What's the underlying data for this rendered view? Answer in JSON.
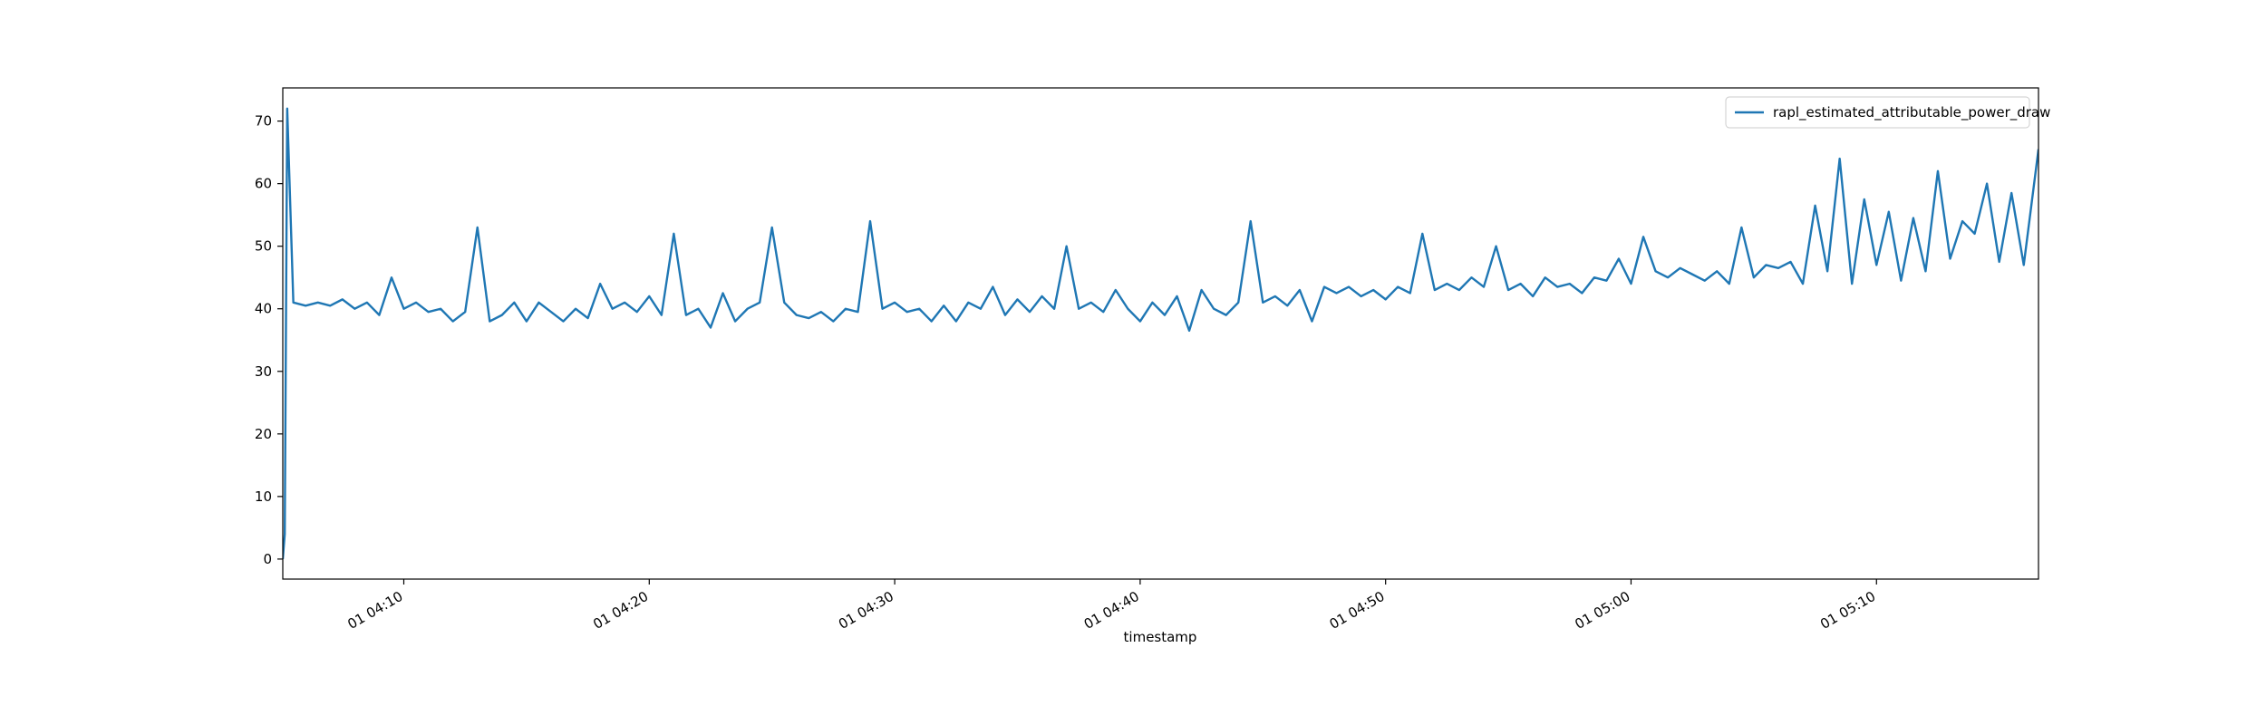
{
  "chart_data": {
    "type": "line",
    "xlabel": "timestamp",
    "legend": "upper right",
    "grid": false,
    "xlim": [
      5.07,
      76.6
    ],
    "ylim": [
      -3.2,
      75.3
    ],
    "xticks": [
      {
        "value": 10,
        "label": "01 04:10"
      },
      {
        "value": 20,
        "label": "01 04:20"
      },
      {
        "value": 30,
        "label": "01 04:30"
      },
      {
        "value": 40,
        "label": "01 04:40"
      },
      {
        "value": 50,
        "label": "01 04:50"
      },
      {
        "value": 60,
        "label": "01 05:00"
      },
      {
        "value": 70,
        "label": "01 05:10"
      }
    ],
    "yticks": [
      0,
      10,
      20,
      30,
      40,
      50,
      60,
      70
    ],
    "x": [
      5.07,
      5.15,
      5.25,
      5.5,
      6,
      6.5,
      7,
      7.5,
      8,
      8.5,
      9,
      9.5,
      10,
      10.5,
      11,
      11.5,
      12,
      12.5,
      13,
      13.5,
      14,
      14.5,
      15,
      15.5,
      16,
      16.5,
      17,
      17.5,
      18,
      18.5,
      19,
      19.5,
      20,
      20.5,
      21,
      21.5,
      22,
      22.5,
      23,
      23.5,
      24,
      24.5,
      25,
      25.5,
      26,
      26.5,
      27,
      27.5,
      28,
      28.5,
      29,
      29.5,
      30,
      30.5,
      31,
      31.5,
      32,
      32.5,
      33,
      33.5,
      34,
      34.5,
      35,
      35.5,
      36,
      36.5,
      37,
      37.5,
      38,
      38.5,
      39,
      39.5,
      40,
      40.5,
      41,
      41.5,
      42,
      42.5,
      43,
      43.5,
      44,
      44.5,
      45,
      45.5,
      46,
      46.5,
      47,
      47.5,
      48,
      48.5,
      49,
      49.5,
      50,
      50.5,
      51,
      51.5,
      52,
      52.5,
      53,
      53.5,
      54,
      54.5,
      55,
      55.5,
      56,
      56.5,
      57,
      57.5,
      58,
      58.5,
      59,
      59.5,
      60,
      60.5,
      61,
      61.5,
      62,
      62.5,
      63,
      63.5,
      64,
      64.5,
      65,
      65.5,
      66,
      66.5,
      67,
      67.5,
      68,
      68.5,
      69,
      69.5,
      70,
      70.5,
      71,
      71.5,
      72,
      72.5,
      73,
      73.5,
      74,
      74.5,
      75,
      75.5,
      76,
      76.6
    ],
    "series": [
      {
        "name": "rapl_estimated_attributable_power_draw",
        "color": "#1f77b4",
        "values": [
          0,
          4,
          72,
          41,
          40.5,
          41,
          40.5,
          41.5,
          40,
          41,
          39,
          45,
          40,
          41,
          39.5,
          40,
          38,
          39.5,
          53,
          38,
          39,
          41,
          38,
          41,
          39.5,
          38,
          40,
          38.5,
          44,
          40,
          41,
          39.5,
          42,
          39,
          52,
          39,
          40,
          37,
          42.5,
          38,
          40,
          41,
          53,
          41,
          39,
          38.5,
          39.5,
          38,
          40,
          39.5,
          54,
          40,
          41,
          39.5,
          40,
          38,
          40.5,
          38,
          41,
          40,
          43.5,
          39,
          41.5,
          39.5,
          42,
          40,
          50,
          40,
          41,
          39.5,
          43,
          40,
          38,
          41,
          39,
          42,
          36.5,
          43,
          40,
          39,
          41,
          54,
          41,
          42,
          40.5,
          43,
          38,
          43.5,
          42.5,
          43.5,
          42,
          43,
          41.5,
          43.5,
          42.5,
          52,
          43,
          44,
          43,
          45,
          43.5,
          50,
          43,
          44,
          42,
          45,
          43.5,
          44,
          42.5,
          45,
          44.5,
          48,
          44,
          51.5,
          46,
          45,
          46.5,
          45.5,
          44.5,
          46,
          44,
          53,
          45,
          47,
          46.5,
          47.5,
          44,
          56.5,
          46,
          64,
          44,
          57.5,
          47,
          55.5,
          44.5,
          54.5,
          46,
          62,
          48,
          54,
          52,
          60,
          47.5,
          58.5,
          47,
          65.5
        ]
      }
    ]
  }
}
